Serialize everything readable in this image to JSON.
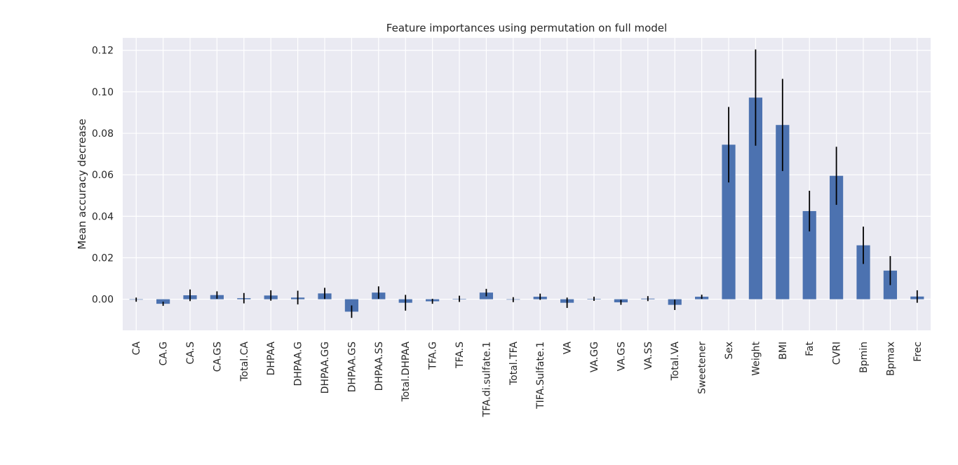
{
  "chart_data": {
    "type": "bar",
    "title": "Feature importances using permutation on full model",
    "xlabel": "",
    "ylabel": "Mean accuracy decrease",
    "ylim": [
      -0.015,
      0.126
    ],
    "yticks": [
      0.0,
      0.02,
      0.04,
      0.06,
      0.08,
      0.1,
      0.12
    ],
    "ytick_labels": [
      "0.00",
      "0.02",
      "0.04",
      "0.06",
      "0.08",
      "0.10",
      "0.12"
    ],
    "grid": true,
    "legend": "none",
    "bar_color": "#4c72b0",
    "error_color": "#000000",
    "background_color": "#eaeaf2",
    "grid_color": "#ffffff",
    "categories": [
      "CA",
      "CA.G",
      "CA.S",
      "CA.GS",
      "Total.CA",
      "DHPAA",
      "DHPAA.G",
      "DHPAA.GG",
      "DHPAA.GS",
      "DHPAA.SS",
      "Total.DHPAA",
      "TFA.G",
      "TFA.S",
      "TFA.di.sulfate.1",
      "Total.TFA",
      "TIFA.Sulfate.1",
      "VA",
      "VA.GG",
      "VA.GS",
      "VA.SS",
      "Total.VA",
      "Sweetener",
      "Sex",
      "Weight",
      "BMI",
      "Fat",
      "CVRI",
      "Bpmin",
      "Bpmax",
      "Frec"
    ],
    "values": [
      -0.0002,
      -0.0022,
      0.0019,
      0.002,
      0.0005,
      0.0018,
      0.0008,
      0.0028,
      -0.006,
      0.0032,
      -0.0017,
      -0.001,
      0.0002,
      0.0032,
      -0.0002,
      0.0012,
      -0.0017,
      0.0002,
      -0.0015,
      0.0003,
      -0.0027,
      0.0012,
      0.0745,
      0.0972,
      0.084,
      0.0425,
      0.0595,
      0.026,
      0.0138,
      0.0013
    ],
    "errors": [
      0.001,
      0.001,
      0.0028,
      0.0018,
      0.0025,
      0.0025,
      0.0033,
      0.0027,
      0.003,
      0.003,
      0.0038,
      0.0012,
      0.0015,
      0.0018,
      0.0012,
      0.0015,
      0.0025,
      0.001,
      0.0012,
      0.0012,
      0.0025,
      0.001,
      0.0182,
      0.0232,
      0.0222,
      0.0098,
      0.014,
      0.009,
      0.007,
      0.003
    ]
  }
}
